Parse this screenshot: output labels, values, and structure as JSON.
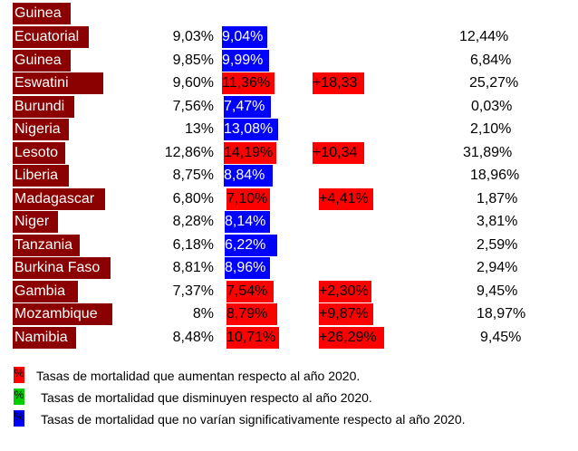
{
  "colors": {
    "country_bg": "#8b0000",
    "increase": "#ff0000",
    "decrease": "#00cc00",
    "no_change": "#0000ff"
  },
  "top_label": "Guinea",
  "rows": [
    {
      "country": "Ecuatorial",
      "v2020": "9,03%",
      "v2021": "9,04%",
      "v2021_status": "no_change",
      "change": "",
      "last": "12,44%"
    },
    {
      "country": "Guinea",
      "v2020": "9,85%",
      "v2021": "9,99%",
      "v2021_status": "no_change",
      "change": "",
      "last": "6,84%"
    },
    {
      "country": "Eswatini",
      "v2020": "9,60%",
      "v2021": "11,36%",
      "v2021_status": "increase",
      "change": "+18,33",
      "last": "25,27%"
    },
    {
      "country": "Burundi",
      "v2020": "7,56%",
      "v2021": "7,47%",
      "v2021_status": "no_change",
      "change": "",
      "last": "0,03%"
    },
    {
      "country": "Nigeria",
      "v2020": "13%",
      "v2021": "13,08%",
      "v2021_status": "no_change",
      "change": "",
      "last": "2,10%"
    },
    {
      "country": "Lesoto",
      "v2020": "12,86%",
      "v2021": "14,19%",
      "v2021_status": "increase",
      "change": "+10,34",
      "last": "31,89%"
    },
    {
      "country": "Liberia",
      "v2020": "8,75%",
      "v2021": "8,84%",
      "v2021_status": "no_change",
      "change": "",
      "last": "18,96%"
    },
    {
      "country": "Madagascar",
      "v2020": "6,80%",
      "v2021": "7,10%",
      "v2021_status": "increase",
      "change": "+4,41%",
      "last": "1,87%"
    },
    {
      "country": "Niger",
      "v2020": "8,28%",
      "v2021": "8,14%",
      "v2021_status": "no_change",
      "change": "",
      "last": "3,81%"
    },
    {
      "country": "Tanzania",
      "v2020": "6,18%",
      "v2021": "6,22%",
      "v2021_status": "no_change",
      "change": "",
      "last": "2,59%"
    },
    {
      "country": "Burkina Faso",
      "v2020": "8,81%",
      "v2021": "8,96%",
      "v2021_status": "no_change",
      "change": "",
      "last": "2,94%"
    },
    {
      "country": "Gambia",
      "v2020": "7,37%",
      "v2021": "7,54%",
      "v2021_status": "increase",
      "change": "+2,30%",
      "last": "9,45%"
    },
    {
      "country": "Mozambique",
      "v2020": "8%",
      "v2021": "8,79%",
      "v2021_status": "increase",
      "change": "+9,87%",
      "last": "18,97%"
    },
    {
      "country": "Namibia",
      "v2020": "8,48%",
      "v2021": "10,71%",
      "v2021_status": "increase",
      "change": "+26,29%",
      "last": "9,45%"
    }
  ],
  "legend": [
    {
      "symbol": "%",
      "color": "#ff0000",
      "text": "Tasas de mortalidad que aumentan respecto al año 2020."
    },
    {
      "symbol": "%",
      "color": "#00cc00",
      "text": "Tasas de mortalidad que disminuyen respecto al año 2020."
    },
    {
      "symbol": "%",
      "color": "#0000ff",
      "text": "Tasas de mortalidad que no varían significativamente respecto al año 2020."
    }
  ]
}
